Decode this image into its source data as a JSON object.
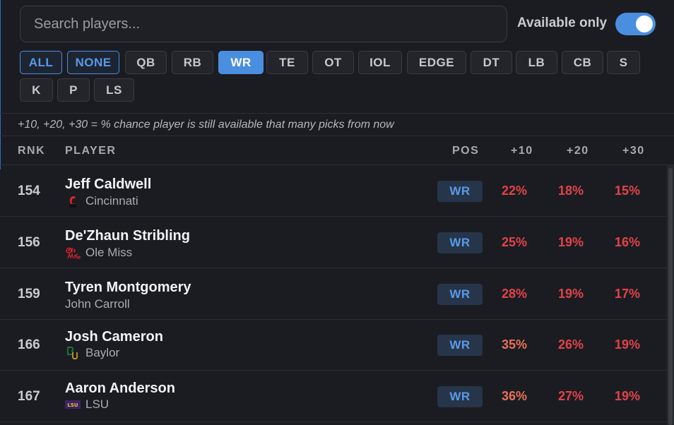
{
  "search": {
    "placeholder": "Search players...",
    "value": ""
  },
  "available_only": {
    "label": "Available only",
    "enabled": true
  },
  "positions": [
    {
      "label": "ALL",
      "style": "outline-blue"
    },
    {
      "label": "NONE",
      "style": "outline-blue"
    },
    {
      "label": "QB",
      "style": "default"
    },
    {
      "label": "RB",
      "style": "default"
    },
    {
      "label": "WR",
      "style": "active"
    },
    {
      "label": "TE",
      "style": "default"
    },
    {
      "label": "OT",
      "style": "default"
    },
    {
      "label": "IOL",
      "style": "default"
    },
    {
      "label": "EDGE",
      "style": "default"
    },
    {
      "label": "DT",
      "style": "default"
    },
    {
      "label": "LB",
      "style": "default"
    },
    {
      "label": "CB",
      "style": "default"
    },
    {
      "label": "S",
      "style": "default"
    },
    {
      "label": "K",
      "style": "default"
    },
    {
      "label": "P",
      "style": "default"
    },
    {
      "label": "LS",
      "style": "default"
    }
  ],
  "hint": "+10, +20, +30 = % chance player is still available that many picks from now",
  "columns": {
    "rnk": "RNK",
    "player": "PLAYER",
    "pos": "POS",
    "p10": "+10",
    "p20": "+20",
    "p30": "+30"
  },
  "colors": {
    "accent": "#4a8ee0",
    "pct_red": "#e0434a",
    "pct_orange": "#e8715a"
  },
  "players": [
    {
      "rank": "154",
      "name": "Jeff Caldwell",
      "school": "Cincinnati",
      "logo": "cincinnati-logo-icon",
      "pos": "WR",
      "p10": "22%",
      "p20": "18%",
      "p30": "15%"
    },
    {
      "rank": "156",
      "name": "De'Zhaun Stribling",
      "school": "Ole Miss",
      "logo": "ole-miss-logo-icon",
      "pos": "WR",
      "p10": "25%",
      "p20": "19%",
      "p30": "16%"
    },
    {
      "rank": "159",
      "name": "Tyren Montgomery",
      "school": "John Carroll",
      "logo": "",
      "pos": "WR",
      "p10": "28%",
      "p20": "19%",
      "p30": "17%"
    },
    {
      "rank": "166",
      "name": "Josh Cameron",
      "school": "Baylor",
      "logo": "baylor-logo-icon",
      "pos": "WR",
      "p10": "35%",
      "p20": "26%",
      "p30": "19%"
    },
    {
      "rank": "167",
      "name": "Aaron Anderson",
      "school": "LSU",
      "logo": "lsu-logo-icon",
      "pos": "WR",
      "p10": "36%",
      "p20": "27%",
      "p30": "19%"
    }
  ]
}
